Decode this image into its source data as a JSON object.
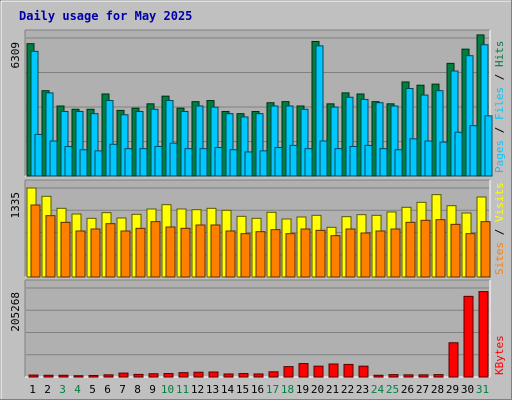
{
  "title": "Daily usage for May 2025",
  "colors": {
    "background": "#c0c0c0",
    "plot": "#b0b0b0",
    "title": "#0000aa",
    "hits": "#008040",
    "files": "#00c8ff",
    "pages": "#00c8ff",
    "visits": "#ffff00",
    "sites": "#ff8000",
    "kbytes": "#ff0000",
    "weekend_label": "#008040",
    "weekday_label": "#000000"
  },
  "chart_data": [
    {
      "type": "bar",
      "panel": "hits-files-pages",
      "ymax_label": "6309",
      "ylim": [
        0,
        6309
      ],
      "grid": true,
      "legend_labels": [
        "Pages",
        "Files",
        "Hits"
      ],
      "categories": [
        "1",
        "2",
        "3",
        "4",
        "5",
        "6",
        "7",
        "8",
        "9",
        "10",
        "11",
        "12",
        "13",
        "14",
        "15",
        "16",
        "17",
        "18",
        "19",
        "20",
        "21",
        "22",
        "23",
        "24",
        "25",
        "26",
        "27",
        "28",
        "29",
        "30",
        "31"
      ],
      "weekend_days": [
        "3",
        "4",
        "10",
        "11",
        "17",
        "18",
        "24",
        "25",
        "31"
      ],
      "series": [
        {
          "name": "Hits",
          "values": [
            6050,
            3900,
            3200,
            3050,
            3050,
            3750,
            3000,
            3100,
            3300,
            3650,
            3100,
            3400,
            3450,
            2950,
            2850,
            2950,
            3350,
            3400,
            3200,
            6150,
            3300,
            3800,
            3750,
            3400,
            3300,
            4300,
            4150,
            4200,
            5150,
            5800,
            6450
          ]
        },
        {
          "name": "Files",
          "values": [
            5700,
            3800,
            2950,
            2950,
            2850,
            3450,
            2800,
            2950,
            3050,
            3450,
            2950,
            3200,
            3150,
            2850,
            2700,
            2850,
            3200,
            3200,
            3050,
            5950,
            3150,
            3600,
            3500,
            3350,
            3200,
            4000,
            3700,
            3900,
            4800,
            5500,
            6000
          ]
        },
        {
          "name": "Pages",
          "values": [
            1900,
            1600,
            1350,
            1200,
            1150,
            1450,
            1250,
            1250,
            1350,
            1500,
            1250,
            1250,
            1300,
            1200,
            1100,
            1150,
            1300,
            1400,
            1250,
            1600,
            1250,
            1350,
            1400,
            1250,
            1200,
            1700,
            1600,
            1550,
            2000,
            2300,
            2750
          ]
        }
      ]
    },
    {
      "type": "bar",
      "panel": "visits-sites",
      "ymax_label": "1335",
      "ylim": [
        0,
        1335
      ],
      "grid": true,
      "legend_labels": [
        "Sites",
        "Visits"
      ],
      "categories": [
        "1",
        "2",
        "3",
        "4",
        "5",
        "6",
        "7",
        "8",
        "9",
        "10",
        "11",
        "12",
        "13",
        "14",
        "15",
        "16",
        "17",
        "18",
        "19",
        "20",
        "21",
        "22",
        "23",
        "24",
        "25",
        "26",
        "27",
        "28",
        "29",
        "30",
        "31"
      ],
      "series": [
        {
          "name": "Visits",
          "values": [
            1335,
            1210,
            1030,
            945,
            880,
            965,
            885,
            940,
            1020,
            1085,
            1020,
            1010,
            1030,
            1000,
            910,
            880,
            970,
            870,
            900,
            925,
            745,
            905,
            935,
            925,
            975,
            1045,
            1120,
            1235,
            1070,
            960,
            1200
          ]
        },
        {
          "name": "Sites",
          "values": [
            1080,
            920,
            820,
            690,
            720,
            800,
            690,
            730,
            830,
            750,
            730,
            780,
            780,
            690,
            650,
            680,
            710,
            650,
            720,
            700,
            620,
            720,
            660,
            690,
            720,
            820,
            850,
            860,
            790,
            650,
            830
          ]
        }
      ]
    },
    {
      "type": "bar",
      "panel": "kbytes",
      "ymax_label": "205268",
      "ylim": [
        0,
        205268
      ],
      "grid": true,
      "legend_labels": [
        "KBytes"
      ],
      "categories": [
        "1",
        "2",
        "3",
        "4",
        "5",
        "6",
        "7",
        "8",
        "9",
        "10",
        "11",
        "12",
        "13",
        "14",
        "15",
        "16",
        "17",
        "18",
        "19",
        "20",
        "21",
        "22",
        "23",
        "24",
        "25",
        "26",
        "27",
        "28",
        "29",
        "30",
        "31"
      ],
      "series": [
        {
          "name": "KBytes",
          "values": [
            4500,
            4000,
            4000,
            3000,
            3500,
            5000,
            9000,
            6000,
            7500,
            8000,
            10000,
            11000,
            11500,
            7000,
            8000,
            7000,
            12000,
            24000,
            31000,
            25000,
            30000,
            29000,
            25000,
            4000,
            5500,
            5000,
            5000,
            5500,
            79000,
            186000,
            197000
          ]
        }
      ]
    }
  ]
}
